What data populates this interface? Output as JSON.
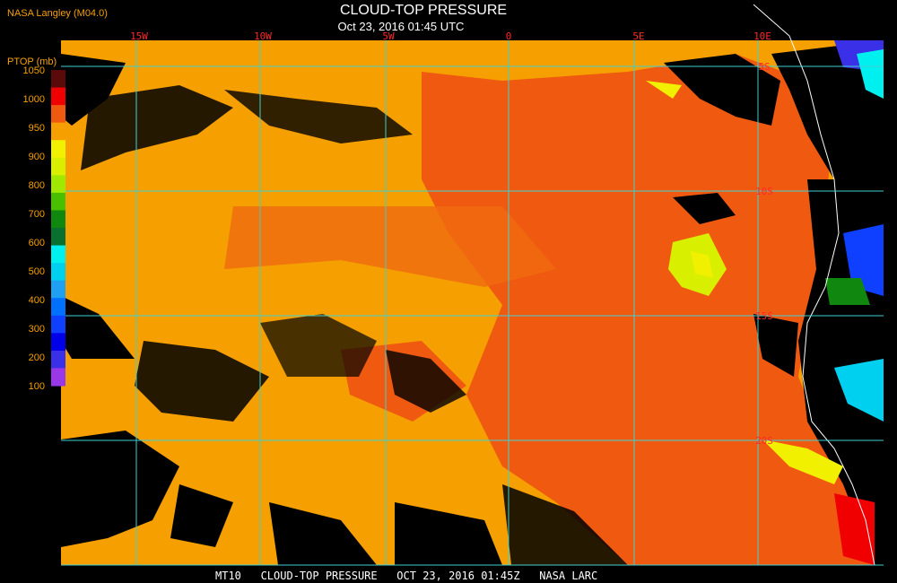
{
  "header": {
    "source": "NASA Langley (M04.0)",
    "title": "CLOUD-TOP PRESSURE",
    "timestamp": "Oct 23, 2016 01:45 UTC"
  },
  "colorbar": {
    "title": "PTOP (mb)",
    "labels": [
      1050,
      1000,
      950,
      900,
      800,
      700,
      600,
      500,
      400,
      300,
      200,
      100
    ],
    "colors": [
      "#5a0a0a",
      "#f00000",
      "#f05a10",
      "#f5a000",
      "#f0f000",
      "#d8f000",
      "#a0e800",
      "#48c000",
      "#108810",
      "#0a7030",
      "#00f0f0",
      "#00d0f0",
      "#20a0f0",
      "#0070ff",
      "#1040ff",
      "#0000e8",
      "#3a30e8",
      "#9a38e8"
    ]
  },
  "map": {
    "longitude_labels": [
      "15W",
      "10W",
      "5W",
      "0",
      "5E",
      "10E"
    ],
    "latitude_labels": [
      "5S",
      "10S",
      "15S",
      "20S"
    ]
  },
  "footer": {
    "caption": "MT10   CLOUD-TOP PRESSURE   OCT 23, 2016 01:45Z   NASA LARC"
  }
}
